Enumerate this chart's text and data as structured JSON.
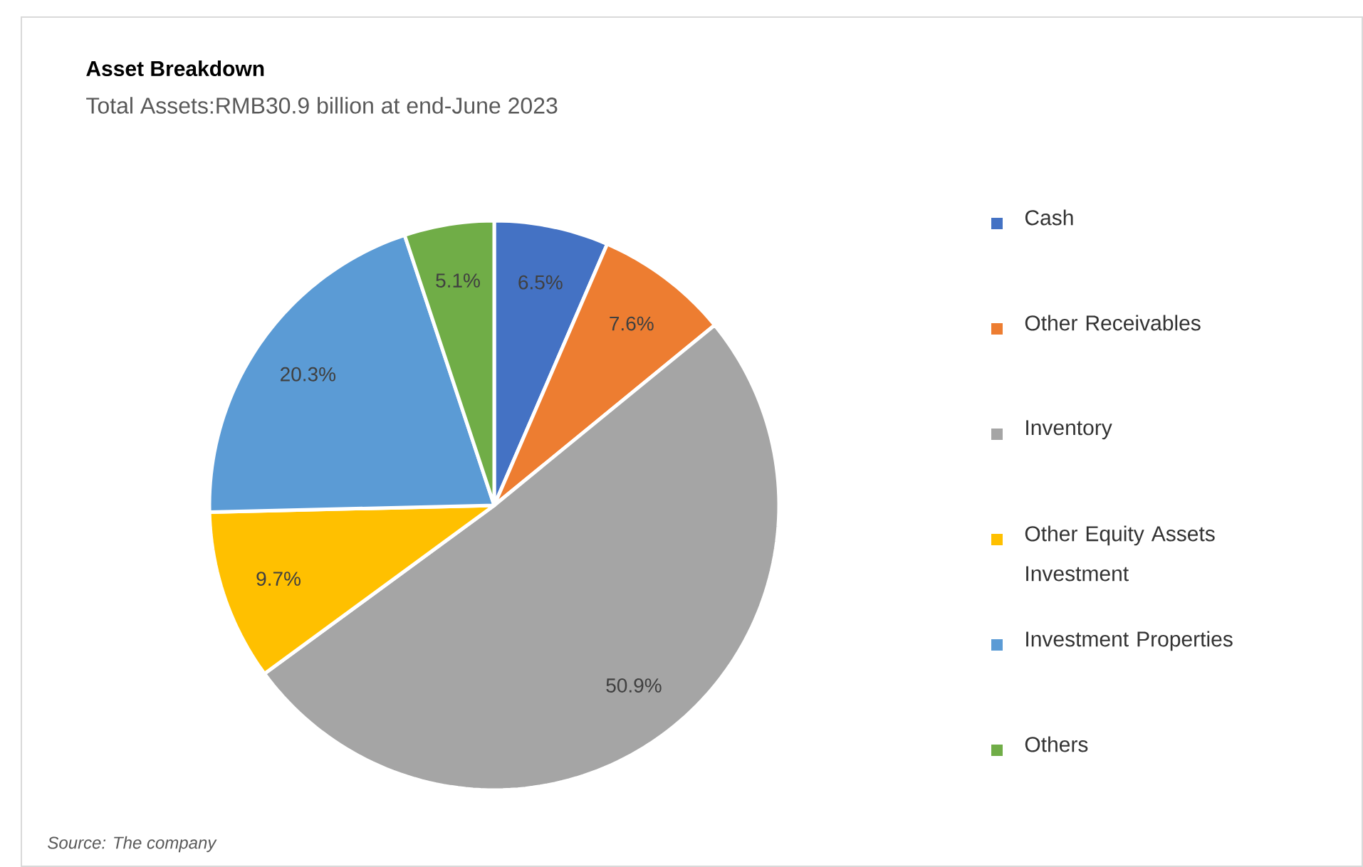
{
  "chart_data": {
    "type": "pie",
    "title": "Asset Breakdown",
    "subtitle": "Total Assets:RMB30.9 billion at end-June 2023",
    "categories": [
      "Cash",
      "Other Receivables",
      "Inventory",
      "Other Equity Assets Investment",
      "Investment Properties",
      "Others"
    ],
    "values": [
      6.5,
      7.6,
      50.9,
      9.7,
      20.3,
      5.1
    ],
    "colors": [
      "#4472c4",
      "#ed7d31",
      "#a5a5a5",
      "#ffc000",
      "#5b9bd5",
      "#70ad47"
    ],
    "value_labels": [
      "6.5%",
      "7.6%",
      "50.9%",
      "9.7%",
      "20.3%",
      "5.1%"
    ],
    "legend": "right",
    "annotations": [
      "Source: The company"
    ]
  }
}
